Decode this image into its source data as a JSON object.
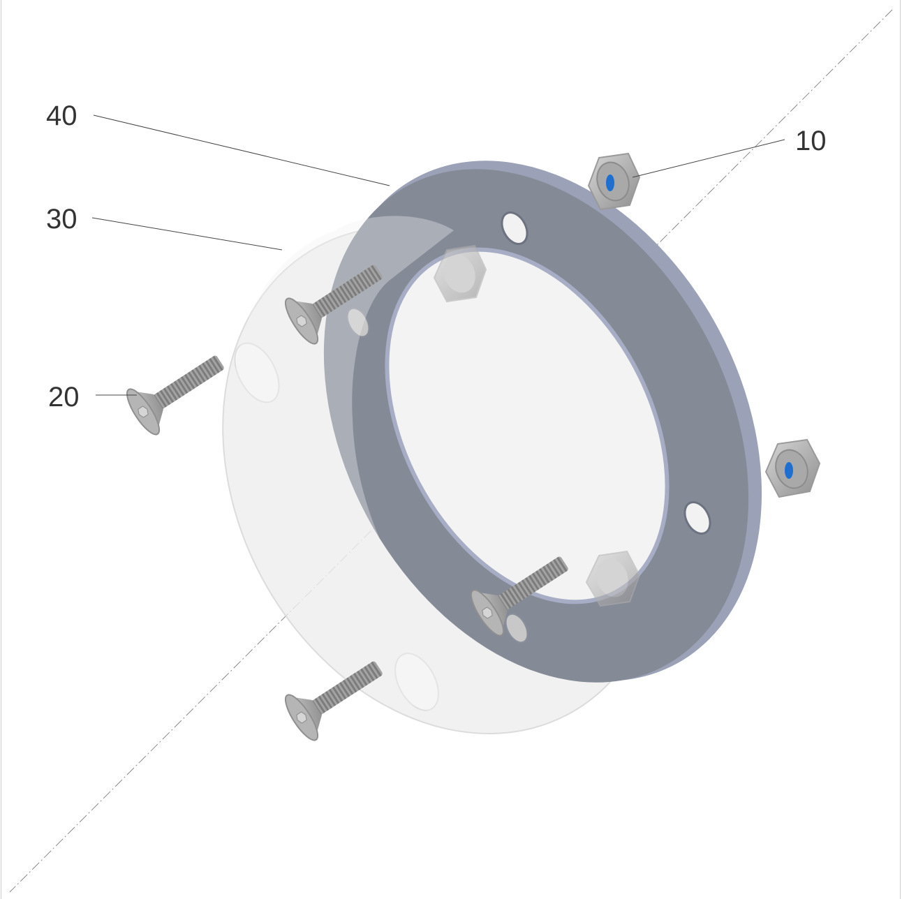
{
  "diagram": {
    "callouts": [
      {
        "id": "callout-40",
        "text": "40"
      },
      {
        "id": "callout-30",
        "text": "30"
      },
      {
        "id": "callout-20",
        "text": "20"
      },
      {
        "id": "callout-10",
        "text": "10"
      }
    ],
    "colors": {
      "flange_face": "#858a97",
      "flange_edge": "#9aa1b8",
      "flange_rim_light": "#a9aec2",
      "clear_disc": "#eaeaea",
      "screw": "#a7a7a7",
      "screw_dark": "#8a8a8a",
      "nut": "#b4b4b4",
      "nut_insert": "#1f6fd1"
    }
  }
}
